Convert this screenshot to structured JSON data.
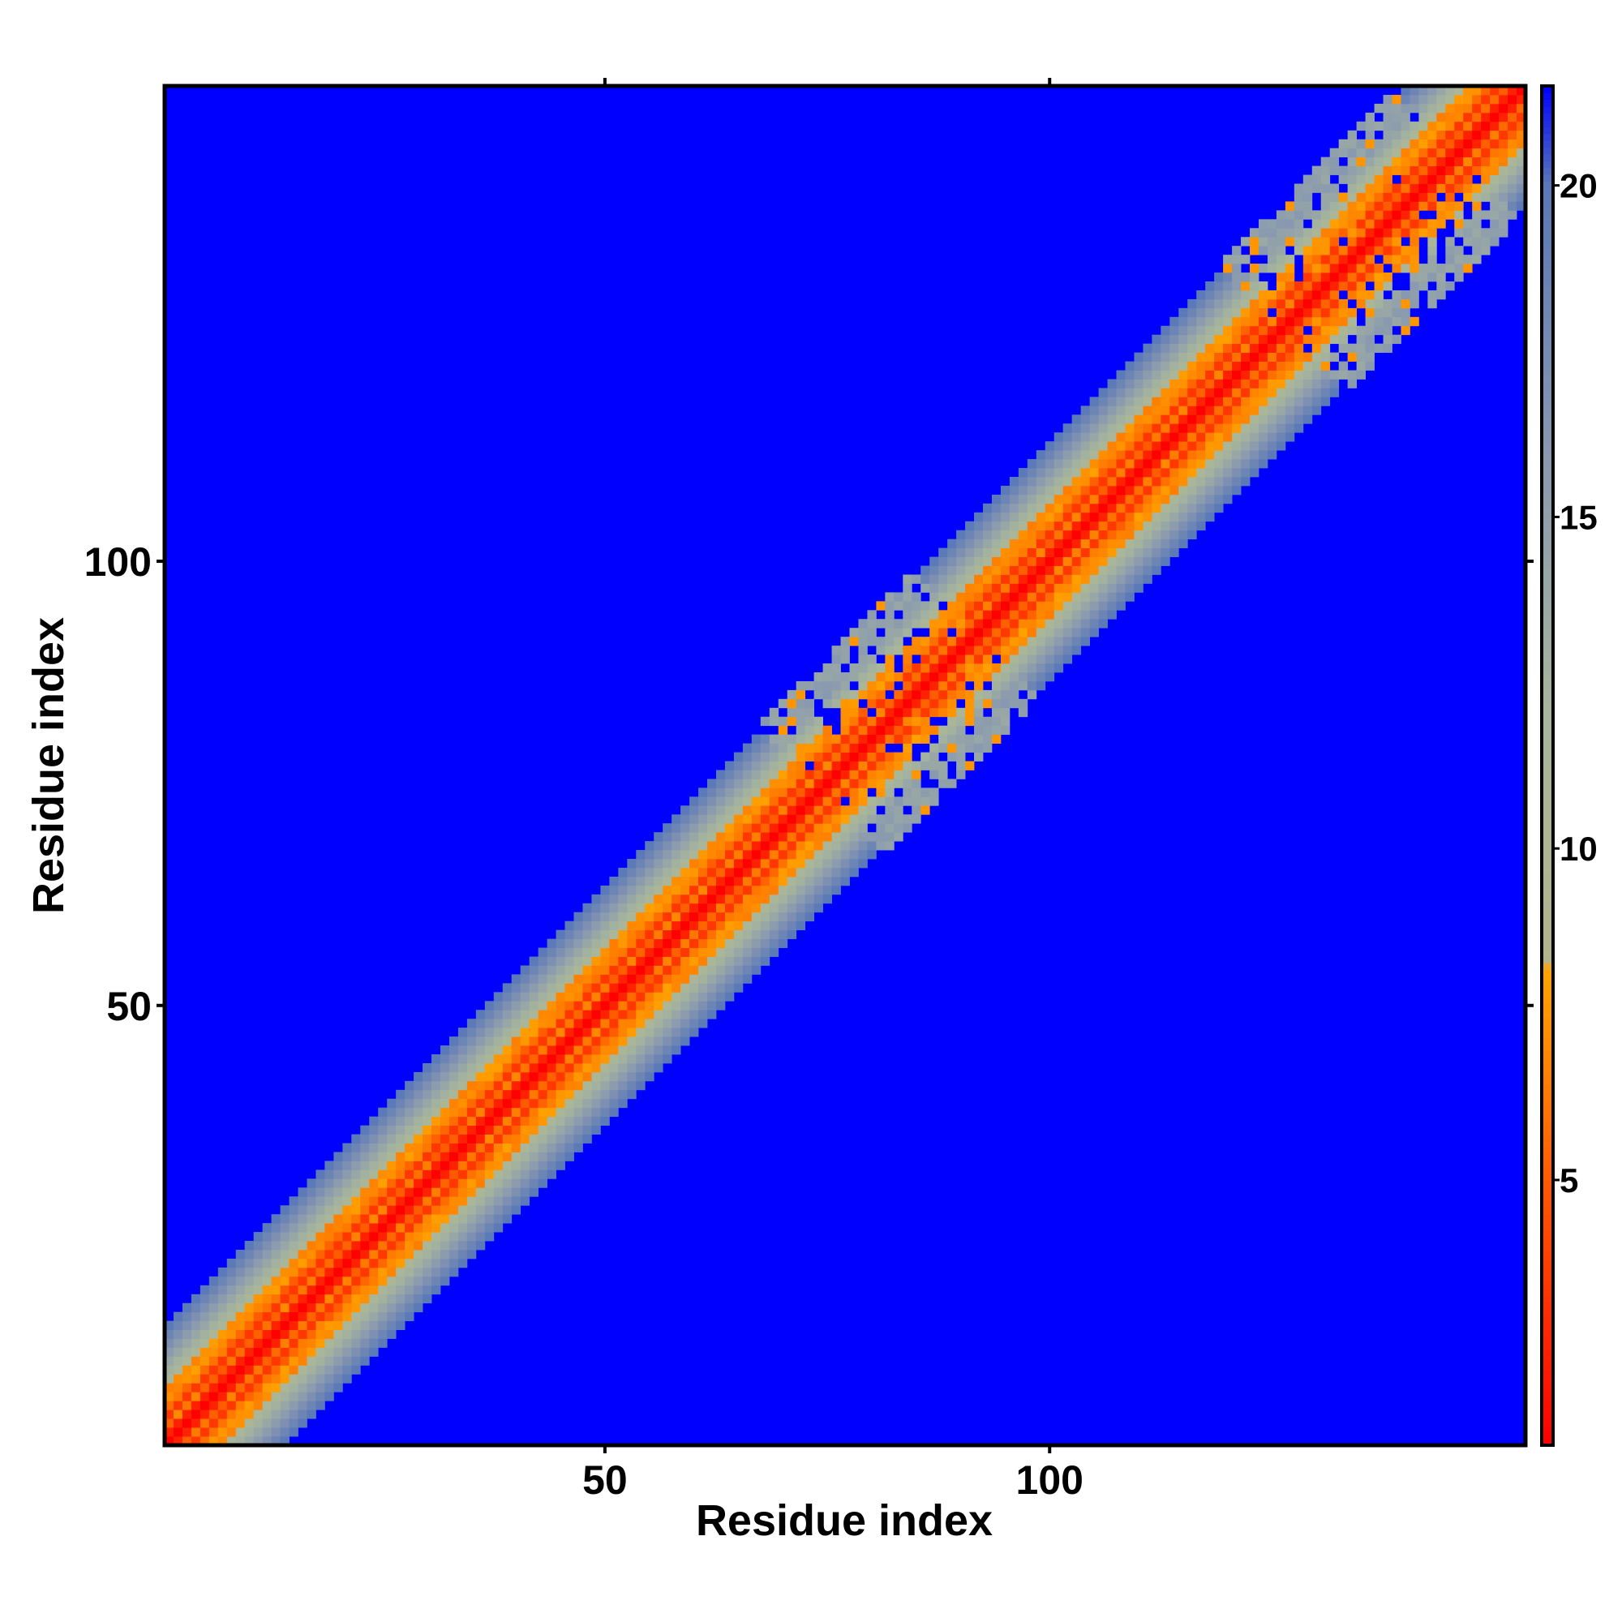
{
  "chart_data": {
    "type": "heatmap",
    "title": "",
    "xlabel": "Residue index",
    "ylabel": "Residue index",
    "n_residues": 153,
    "xlim": [
      1,
      153
    ],
    "ylim": [
      1,
      153
    ],
    "x_ticks": [
      50,
      100
    ],
    "y_ticks": [
      50,
      100
    ],
    "colorbar": {
      "range": [
        1,
        21.5
      ],
      "ticks": [
        5,
        10,
        15,
        20
      ],
      "colors": [
        {
          "value": 1,
          "color": "#ff0000"
        },
        {
          "value": 5,
          "color": "#ff5a00"
        },
        {
          "value": 8.2,
          "color": "#ffa500"
        },
        {
          "value": 8.3,
          "color": "#b4b48c"
        },
        {
          "value": 12,
          "color": "#a8b69c"
        },
        {
          "value": 16,
          "color": "#8898b0"
        },
        {
          "value": 20,
          "color": "#5a78b8"
        },
        {
          "value": 21.5,
          "color": "#0000ff"
        }
      ]
    },
    "description_values": {
      "background_value": 21.5,
      "diagonal_value": 1,
      "band_halfwidth_residues": 13,
      "disrupted_regions_residues": [
        {
          "center": [
            82,
            84
          ],
          "halfwidth": 9
        },
        {
          "center": [
            135,
            137
          ],
          "halfwidth": 10
        }
      ]
    },
    "colors": {
      "background": "#0000ff",
      "diagonal": "#ff0000",
      "near": "#ff7800",
      "mid": "#ffa500",
      "grey_green": "#aab698",
      "grey_blue": "#8da2b0"
    },
    "grid": false,
    "legend": "colorbar-right"
  }
}
